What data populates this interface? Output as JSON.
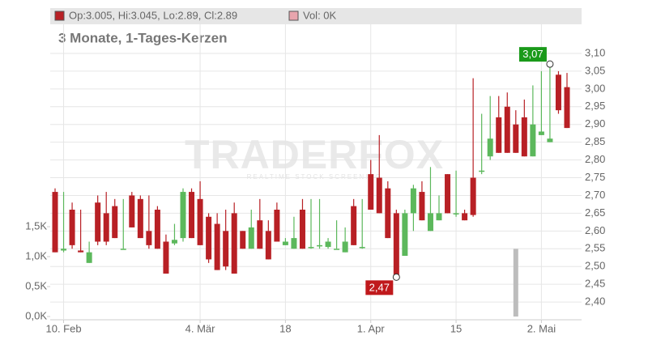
{
  "chart_data": {
    "type": "candlestick",
    "legend": {
      "ohlc": "Op:3.005, Hi:3.045, Lo:2.89, Cl:2.89",
      "volume": "Vol: 0K"
    },
    "subtitle": "3 Monate, 1-Tages-Kerzen",
    "watermark": {
      "title": "TRADERFOX",
      "subtitle": "REALTIME STOCK SCREENING"
    },
    "categories": [
      null,
      "10. Feb",
      null,
      null,
      null,
      null,
      null,
      null,
      null,
      null,
      null,
      null,
      null,
      null,
      null,
      null,
      null,
      "4. Mär",
      null,
      null,
      null,
      null,
      null,
      null,
      null,
      null,
      null,
      "18",
      null,
      null,
      null,
      null,
      null,
      null,
      null,
      null,
      null,
      "1. Apr",
      null,
      null,
      null,
      null,
      null,
      null,
      null,
      null,
      null,
      "15",
      null,
      null,
      null,
      null,
      null,
      null,
      null,
      null,
      null,
      "2. Mai",
      null,
      null,
      null
    ],
    "open": [
      2.71,
      2.545,
      2.66,
      2.545,
      2.51,
      2.68,
      2.65,
      2.67,
      2.55,
      2.7,
      2.69,
      2.6,
      2.66,
      2.57,
      2.565,
      2.58,
      2.71,
      2.69,
      2.64,
      2.62,
      2.6,
      2.65,
      2.6,
      2.55,
      2.63,
      2.6,
      2.66,
      2.56,
      2.55,
      2.66,
      2.555,
      2.56,
      2.555,
      2.55,
      2.54,
      2.67,
      2.555,
      2.76,
      2.75,
      2.72,
      2.65,
      2.53,
      2.65,
      2.71,
      2.6,
      2.63,
      2.76,
      2.65,
      2.65,
      2.75,
      2.77,
      2.81,
      2.92,
      2.95,
      2.9,
      2.92,
      2.81,
      2.87,
      2.85,
      3.04,
      3.005
    ],
    "high": [
      2.72,
      2.71,
      2.68,
      2.66,
      2.57,
      2.7,
      2.71,
      2.69,
      2.69,
      2.71,
      2.7,
      2.7,
      2.67,
      2.59,
      2.62,
      2.72,
      2.72,
      2.74,
      2.65,
      2.65,
      2.66,
      2.68,
      2.6,
      2.66,
      2.69,
      2.63,
      2.68,
      2.58,
      2.64,
      2.69,
      2.69,
      2.69,
      2.58,
      2.63,
      2.61,
      2.69,
      2.69,
      2.8,
      2.87,
      2.74,
      2.66,
      2.66,
      2.73,
      2.74,
      2.78,
      2.7,
      2.76,
      2.77,
      2.66,
      3.03,
      2.93,
      2.98,
      2.98,
      2.99,
      2.94,
      2.97,
      3.01,
      3.05,
      3.07,
      3.05,
      3.045
    ],
    "low": [
      2.54,
      2.54,
      2.55,
      2.54,
      2.51,
      2.56,
      2.56,
      2.58,
      2.55,
      2.61,
      2.58,
      2.55,
      2.55,
      2.48,
      2.56,
      2.57,
      2.58,
      2.56,
      2.51,
      2.49,
      2.49,
      2.48,
      2.55,
      2.55,
      2.55,
      2.52,
      2.57,
      2.56,
      2.55,
      2.55,
      2.55,
      2.55,
      2.55,
      2.55,
      2.54,
      2.56,
      2.55,
      2.66,
      2.65,
      2.58,
      2.47,
      2.53,
      2.6,
      2.63,
      2.6,
      2.63,
      2.65,
      2.64,
      2.63,
      2.64,
      2.76,
      2.8,
      2.82,
      2.82,
      2.82,
      2.81,
      2.81,
      2.87,
      2.85,
      2.93,
      2.89
    ],
    "close": [
      2.54,
      2.55,
      2.56,
      2.54,
      2.54,
      2.57,
      2.57,
      2.58,
      2.55,
      2.61,
      2.58,
      2.56,
      2.55,
      2.48,
      2.575,
      2.71,
      2.58,
      2.56,
      2.52,
      2.49,
      2.5,
      2.48,
      2.55,
      2.61,
      2.55,
      2.52,
      2.57,
      2.57,
      2.58,
      2.55,
      2.555,
      2.56,
      2.57,
      2.55,
      2.57,
      2.56,
      2.555,
      2.66,
      2.65,
      2.58,
      2.47,
      2.65,
      2.72,
      2.63,
      2.65,
      2.65,
      2.65,
      2.65,
      2.63,
      2.645,
      2.77,
      2.86,
      2.82,
      2.82,
      2.82,
      2.81,
      2.9,
      2.88,
      2.86,
      2.94,
      2.89
    ],
    "volume": [
      null,
      null,
      null,
      null,
      null,
      null,
      null,
      null,
      null,
      null,
      null,
      null,
      null,
      null,
      null,
      null,
      null,
      null,
      null,
      null,
      null,
      null,
      null,
      null,
      null,
      null,
      null,
      null,
      null,
      null,
      null,
      null,
      null,
      null,
      null,
      null,
      null,
      null,
      null,
      null,
      null,
      null,
      null,
      null,
      null,
      null,
      null,
      null,
      null,
      null,
      null,
      null,
      null,
      null,
      1.13,
      null,
      null,
      null,
      null,
      null,
      null
    ],
    "up_color": "#5cb85c",
    "down_color": "#b82025",
    "volume_color": "#bdbdbd",
    "max_label": {
      "value": 3.07,
      "label": "3,07",
      "color": "#1a9a1a"
    },
    "min_label": {
      "value": 2.47,
      "label": "2,47",
      "color": "#c0191c"
    },
    "ylim": [
      2.35,
      3.182
    ],
    "yticks": [
      {
        "value": 2.4,
        "label": "2,40"
      },
      {
        "value": 2.45,
        "label": "2,45"
      },
      {
        "value": 2.5,
        "label": "2,50"
      },
      {
        "value": 2.55,
        "label": "2,55"
      },
      {
        "value": 2.6,
        "label": "2,60"
      },
      {
        "value": 2.65,
        "label": "2,65"
      },
      {
        "value": 2.7,
        "label": "2,70"
      },
      {
        "value": 2.75,
        "label": "2,75"
      },
      {
        "value": 2.8,
        "label": "2,80"
      },
      {
        "value": 2.85,
        "label": "2,85"
      },
      {
        "value": 2.9,
        "label": "2,90"
      },
      {
        "value": 2.95,
        "label": "2,95"
      },
      {
        "value": 3.0,
        "label": "3,00"
      },
      {
        "value": 3.05,
        "label": "3,05"
      },
      {
        "value": 3.1,
        "label": "3,10"
      }
    ],
    "y2lim": [
      -0.054,
      4.88
    ],
    "y2ticks": [
      {
        "value": 0,
        "label": "0,0K"
      },
      {
        "value": 0.5,
        "label": "0,5K"
      },
      {
        "value": 1.0,
        "label": "1,0K"
      },
      {
        "value": 1.5,
        "label": "1,5K"
      }
    ],
    "grid": true
  }
}
